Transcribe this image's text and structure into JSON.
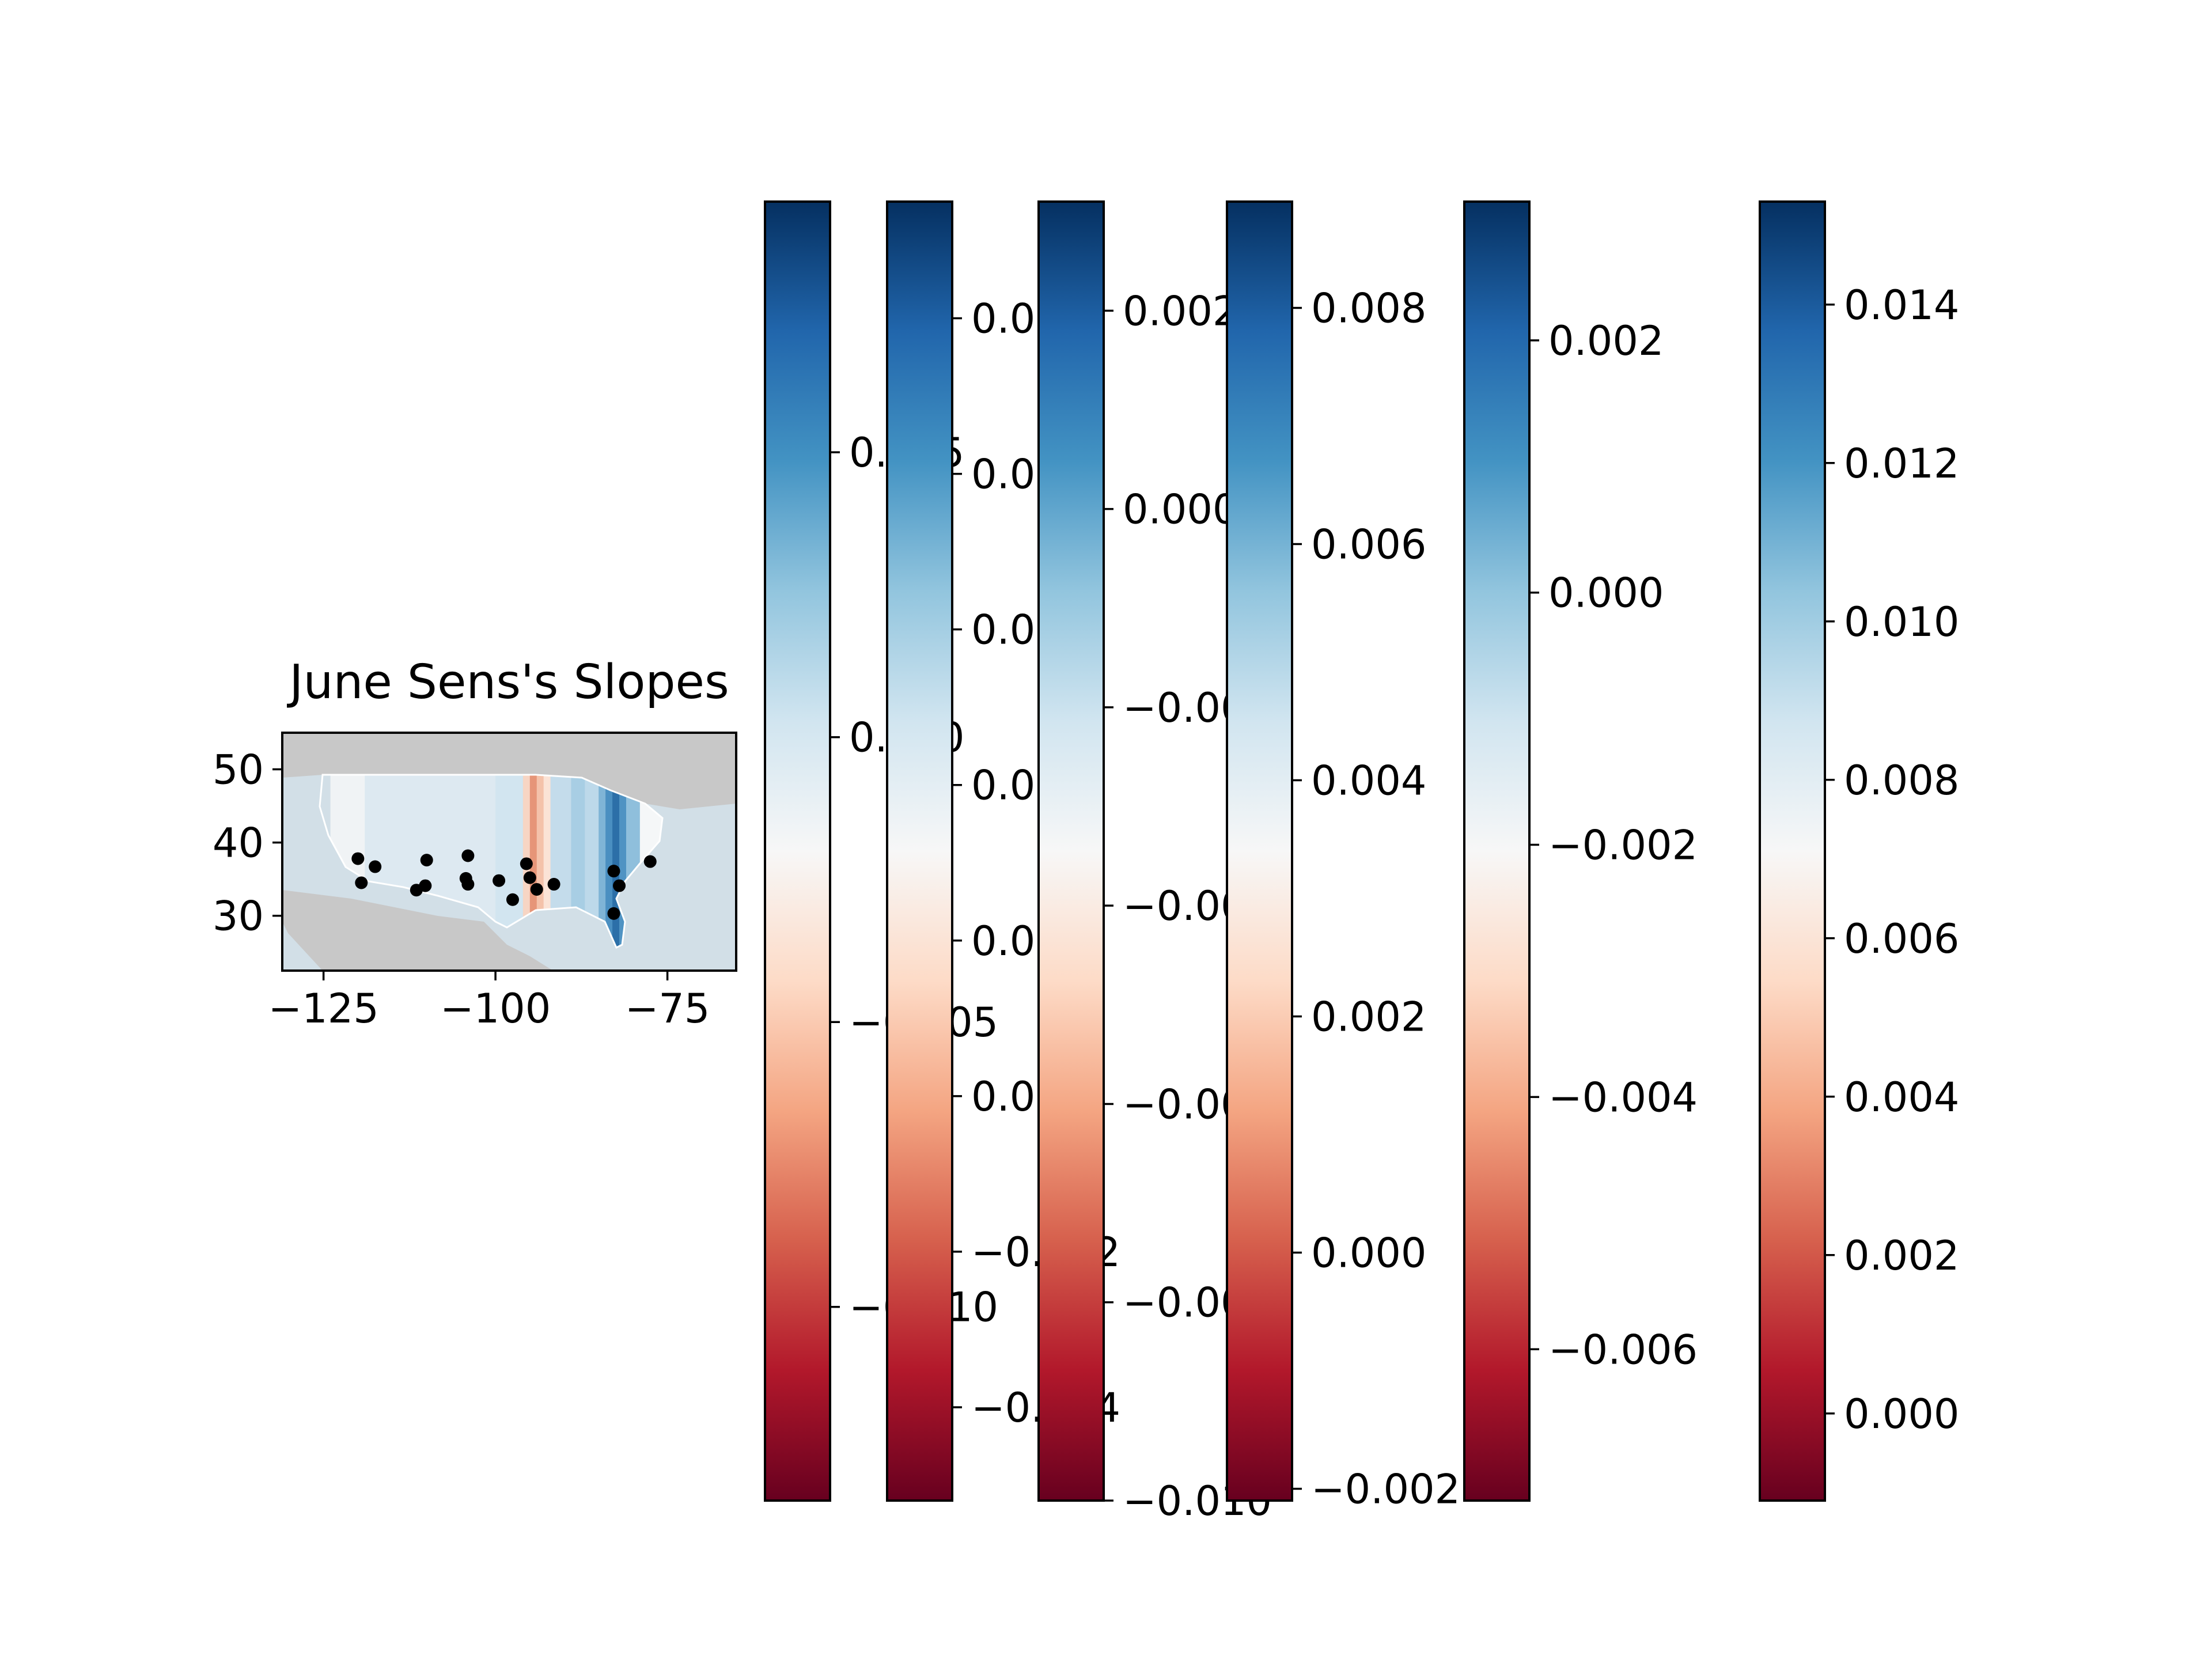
{
  "chart_data": [
    {
      "type": "map",
      "title": "June Sens's Slopes",
      "xlabel": "",
      "ylabel": "",
      "xlim": [
        -131,
        -65
      ],
      "ylim": [
        22.5,
        55
      ],
      "x_ticks": [
        {
          "value": -125,
          "label": "−125"
        },
        {
          "value": -100,
          "label": "−100"
        },
        {
          "value": -75,
          "label": "−75"
        }
      ],
      "y_ticks": [
        {
          "value": 30,
          "label": "30"
        },
        {
          "value": 40,
          "label": "40"
        },
        {
          "value": 50,
          "label": "50"
        }
      ],
      "colors": {
        "land": "#c8c8c8",
        "ocean": "#d2dfe7",
        "outline": "#ffffff"
      },
      "field_bands": [
        {
          "lon": [
            -124,
            -119
          ],
          "color": "#f0f3f5"
        },
        {
          "lon": [
            -119,
            -100
          ],
          "color": "#dde9f1"
        },
        {
          "lon": [
            -100,
            -96
          ],
          "color": "#d2e5f0"
        },
        {
          "lon": [
            -96,
            -95
          ],
          "color": "#f7d5c4"
        },
        {
          "lon": [
            -95,
            -94
          ],
          "color": "#e69578"
        },
        {
          "lon": [
            -94,
            -93
          ],
          "color": "#f4c2aa"
        },
        {
          "lon": [
            -93,
            -92
          ],
          "color": "#fbe3d6"
        },
        {
          "lon": [
            -92,
            -89
          ],
          "color": "#c4dceb"
        },
        {
          "lon": [
            -89,
            -87
          ],
          "color": "#a8cee4"
        },
        {
          "lon": [
            -87,
            -85
          ],
          "color": "#bdd9ea"
        },
        {
          "lon": [
            -85,
            -84
          ],
          "color": "#7fb4d6"
        },
        {
          "lon": [
            -84,
            -83
          ],
          "color": "#4a8fc1"
        },
        {
          "lon": [
            -83,
            -82
          ],
          "color": "#2c6fa8"
        },
        {
          "lon": [
            -82,
            -81
          ],
          "color": "#4f93c3"
        },
        {
          "lon": [
            -81,
            -79
          ],
          "color": "#8fbfdc"
        },
        {
          "lon": [
            -79,
            -75
          ],
          "color": "#f5f7f8"
        },
        {
          "lon": [
            -75,
            -70
          ],
          "color": "#d5e6f0"
        }
      ],
      "points": [
        {
          "lon": -120,
          "lat": 37.8
        },
        {
          "lon": -119.5,
          "lat": 34.5
        },
        {
          "lon": -117.5,
          "lat": 36.7
        },
        {
          "lon": -111.5,
          "lat": 33.5
        },
        {
          "lon": -110.2,
          "lat": 34.1
        },
        {
          "lon": -110,
          "lat": 37.6
        },
        {
          "lon": -104.3,
          "lat": 35.1
        },
        {
          "lon": -104,
          "lat": 34.3
        },
        {
          "lon": -104,
          "lat": 38.2
        },
        {
          "lon": -99.5,
          "lat": 34.8
        },
        {
          "lon": -97.5,
          "lat": 32.2
        },
        {
          "lon": -95.5,
          "lat": 37.1
        },
        {
          "lon": -95,
          "lat": 35.2
        },
        {
          "lon": -94,
          "lat": 33.6
        },
        {
          "lon": -91.5,
          "lat": 34.3
        },
        {
          "lon": -82.8,
          "lat": 36.1
        },
        {
          "lon": -82,
          "lat": 34.1
        },
        {
          "lon": -82.8,
          "lat": 30.3
        },
        {
          "lon": -77.5,
          "lat": 37.4
        }
      ]
    },
    {
      "type": "colorbar",
      "colormap": "RdBu",
      "vmin": -0.0134,
      "vmax": 0.0094,
      "ticks": [
        {
          "value": -0.01,
          "label": "−0.010"
        },
        {
          "value": -0.005,
          "label": "−0.005"
        },
        {
          "value": 0.0,
          "label": "0.000"
        },
        {
          "value": 0.005,
          "label": "0.005"
        }
      ]
    },
    {
      "type": "colorbar",
      "colormap": "RdBu",
      "vmin": -0.0052,
      "vmax": 0.0115,
      "ticks": [
        {
          "value": -0.004,
          "label": "−0.004"
        },
        {
          "value": -0.002,
          "label": "−0.002"
        },
        {
          "value": 0.0,
          "label": "0.000"
        },
        {
          "value": 0.002,
          "label": "0.002"
        },
        {
          "value": 0.004,
          "label": "0.004"
        },
        {
          "value": 0.006,
          "label": "0.006"
        },
        {
          "value": 0.008,
          "label": "0.008"
        },
        {
          "value": 0.01,
          "label": "0.010"
        }
      ]
    },
    {
      "type": "colorbar",
      "colormap": "RdBu",
      "vmin": -0.01,
      "vmax": 0.0031,
      "ticks": [
        {
          "value": -0.01,
          "label": "−0.010"
        },
        {
          "value": -0.008,
          "label": "−0.008"
        },
        {
          "value": -0.006,
          "label": "−0.006"
        },
        {
          "value": -0.004,
          "label": "−0.004"
        },
        {
          "value": -0.002,
          "label": "−0.002"
        },
        {
          "value": 0.0,
          "label": "0.000"
        },
        {
          "value": 0.002,
          "label": "0.002"
        }
      ]
    },
    {
      "type": "colorbar",
      "colormap": "RdBu",
      "vmin": -0.0021,
      "vmax": 0.0089,
      "ticks": [
        {
          "value": -0.002,
          "label": "−0.002"
        },
        {
          "value": 0.0,
          "label": "0.000"
        },
        {
          "value": 0.002,
          "label": "0.002"
        },
        {
          "value": 0.004,
          "label": "0.004"
        },
        {
          "value": 0.006,
          "label": "0.006"
        },
        {
          "value": 0.008,
          "label": "0.008"
        }
      ]
    },
    {
      "type": "colorbar",
      "colormap": "RdBu",
      "vmin": -0.0072,
      "vmax": 0.0031,
      "ticks": [
        {
          "value": -0.006,
          "label": "−0.006"
        },
        {
          "value": -0.004,
          "label": "−0.004"
        },
        {
          "value": -0.002,
          "label": "−0.002"
        },
        {
          "value": 0.0,
          "label": "0.000"
        },
        {
          "value": 0.002,
          "label": "0.002"
        }
      ]
    },
    {
      "type": "colorbar",
      "colormap": "RdBu",
      "vmin": -0.0011,
      "vmax": 0.0153,
      "ticks": [
        {
          "value": 0.0,
          "label": "0.000"
        },
        {
          "value": 0.002,
          "label": "0.002"
        },
        {
          "value": 0.004,
          "label": "0.004"
        },
        {
          "value": 0.006,
          "label": "0.006"
        },
        {
          "value": 0.008,
          "label": "0.008"
        },
        {
          "value": 0.01,
          "label": "0.010"
        },
        {
          "value": 0.012,
          "label": "0.012"
        },
        {
          "value": 0.014,
          "label": "0.014"
        }
      ]
    }
  ]
}
